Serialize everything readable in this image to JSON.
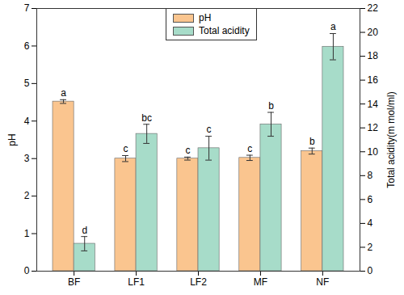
{
  "chart_data": {
    "type": "bar",
    "categories": [
      "BF",
      "LF1",
      "LF2",
      "MF",
      "NF"
    ],
    "y_label": "pH",
    "y2_label": "Total acidity(m mol/ml)",
    "ylim": [
      0,
      7
    ],
    "yticks": [
      0,
      1,
      2,
      3,
      4,
      5,
      6,
      7
    ],
    "y2lim": [
      0,
      22
    ],
    "y2ticks": [
      0,
      2,
      4,
      6,
      8,
      10,
      12,
      14,
      16,
      18,
      20,
      22
    ],
    "legend": "top",
    "grid": false,
    "series": [
      {
        "name": "pH",
        "color": "#FAC58F",
        "values": [
          4.52,
          3.0,
          3.0,
          3.02,
          3.2
        ],
        "errors": [
          0.05,
          0.08,
          0.04,
          0.07,
          0.08
        ],
        "letters": [
          "a",
          "c",
          "c",
          "c",
          "b"
        ]
      },
      {
        "name": "Total acidity",
        "color": "#A7DCC9",
        "axis": "y2",
        "values": [
          2.3,
          11.5,
          10.3,
          12.3,
          18.8
        ],
        "errors": [
          0.6,
          0.8,
          1.0,
          1.0,
          1.1
        ],
        "letters": [
          "d",
          "bc",
          "c",
          "b",
          "a"
        ]
      }
    ]
  }
}
